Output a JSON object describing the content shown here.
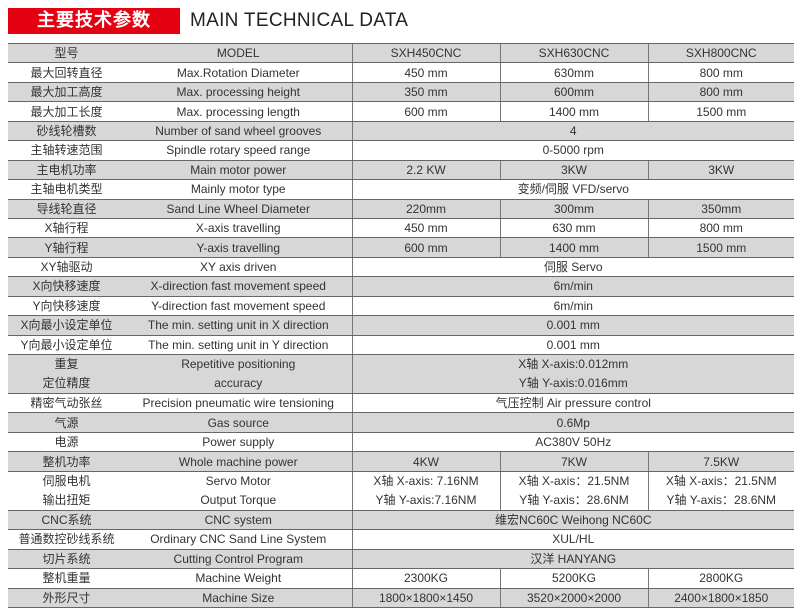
{
  "title": {
    "cn": "主要技术参数",
    "en": "MAIN TECHNICAL DATA"
  },
  "colors": {
    "accent": "#e50012",
    "row_shade": "#d7d7d7"
  },
  "header": {
    "cn": "型号",
    "en": "MODEL",
    "models": [
      "SXH450CNC",
      "SXH630CNC",
      "SXH800CNC"
    ]
  },
  "rows": [
    {
      "cn": "最大回转直径",
      "en": "Max.Rotation Diameter",
      "values": [
        "450 mm",
        "630mm",
        "800 mm"
      ]
    },
    {
      "cn": "最大加工高度",
      "en": "Max. processing height",
      "values": [
        "350 mm",
        "600mm",
        "800 mm"
      ]
    },
    {
      "cn": "最大加工长度",
      "en": "Max. processing length",
      "values": [
        "600 mm",
        "1400 mm",
        "1500 mm"
      ]
    },
    {
      "cn": "砂线轮槽数",
      "en": "Number of sand wheel grooves",
      "value": "4"
    },
    {
      "cn": "主轴转速范围",
      "en": "Spindle rotary speed range",
      "value": "0-5000 rpm"
    },
    {
      "cn": "主电机功率",
      "en": "Main motor power",
      "values": [
        "2.2 KW",
        "3KW",
        "3KW"
      ]
    },
    {
      "cn": "主轴电机类型",
      "en": "Mainly motor type",
      "value": "变频/伺服 VFD/servo"
    },
    {
      "cn": "导线轮直径",
      "en": "Sand Line Wheel Diameter",
      "values": [
        "220mm",
        "300mm",
        "350mm"
      ]
    },
    {
      "cn": "X轴行程",
      "en": "X-axis travelling",
      "values": [
        "450 mm",
        "630 mm",
        "800 mm"
      ]
    },
    {
      "cn": "Y轴行程",
      "en": "Y-axis travelling",
      "values": [
        "600 mm",
        "1400 mm",
        "1500 mm"
      ]
    },
    {
      "cn": "XY轴驱动",
      "en": "XY axis driven",
      "value": "伺服 Servo"
    },
    {
      "cn": "X向快移速度",
      "en": "X-direction fast movement speed",
      "value": "6m/min"
    },
    {
      "cn": "Y向快移速度",
      "en": "Y-direction fast movement speed",
      "value": "6m/min"
    },
    {
      "cn": "X向最小设定单位",
      "en": "The min. setting unit in X direction",
      "value": "0.001 mm"
    },
    {
      "cn": "Y向最小设定单位",
      "en": "The min. setting unit in Y direction",
      "value": "0.001 mm"
    },
    {
      "cn": [
        "重复",
        "定位精度"
      ],
      "en": [
        "Repetitive positioning",
        "accuracy"
      ],
      "value": [
        "X轴 X-axis:0.012mm",
        "Y轴 Y-axis:0.016mm"
      ]
    },
    {
      "cn": "精密气动张丝",
      "en": "Precision pneumatic wire tensioning",
      "value": "气压控制 Air pressure control"
    },
    {
      "cn": "气源",
      "en": "Gas source",
      "value": "0.6Mp"
    },
    {
      "cn": "电源",
      "en": "Power supply",
      "value": "AC380V 50Hz"
    },
    {
      "cn": "整机功率",
      "en": "Whole machine power",
      "values": [
        "4KW",
        "7KW",
        "7.5KW"
      ]
    },
    {
      "cn": [
        "伺服电机",
        "输出扭矩"
      ],
      "en": [
        "Servo Motor",
        "Output Torque"
      ],
      "values": [
        [
          "X轴 X-axis: 7.16NM",
          "Y轴 Y-axis:7.16NM"
        ],
        [
          "X轴 X-axis：21.5NM",
          "Y轴 Y-axis：28.6NM"
        ],
        [
          "X轴 X-axis：21.5NM",
          "Y轴 Y-axis：28.6NM"
        ]
      ]
    },
    {
      "cn": "CNC系统",
      "en": "CNC system",
      "value": "维宏NC60C Weihong NC60C"
    },
    {
      "cn": "普通数控砂线系统",
      "en": "Ordinary CNC Sand Line System",
      "value": "XUL/HL"
    },
    {
      "cn": "切片系统",
      "en": "Cutting Control Program",
      "value": "汉洋 HANYANG"
    },
    {
      "cn": "整机重量",
      "en": "Machine Weight",
      "values": [
        "2300KG",
        "5200KG",
        "2800KG"
      ]
    },
    {
      "cn": "外形尺寸",
      "en": "Machine Size",
      "values": [
        "1800×1800×1450",
        "3520×2000×2000",
        "2400×1800×1850"
      ]
    }
  ]
}
